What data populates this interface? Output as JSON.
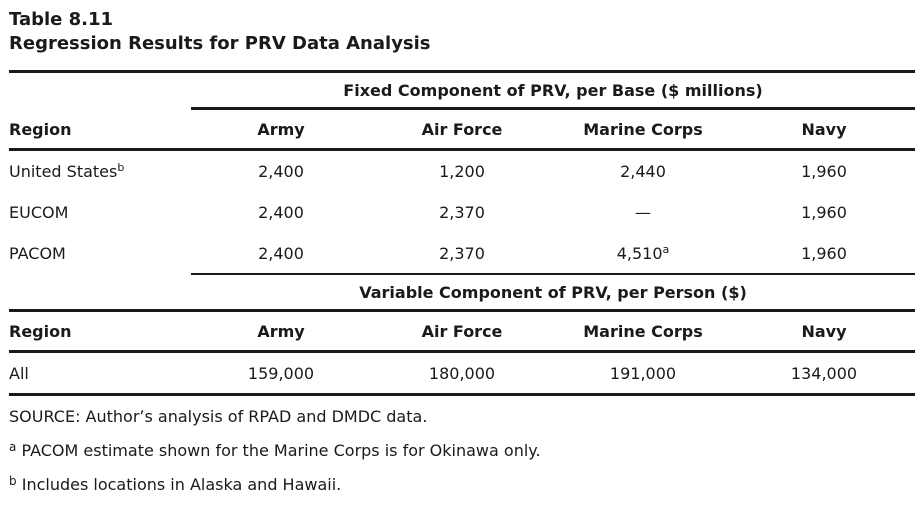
{
  "table": {
    "number": "Table 8.11",
    "title": "Regression Results for PRV Data Analysis",
    "fixed_heading": "Fixed Component of PRV, per Base ($ millions)",
    "variable_heading": "Variable Component of PRV, per Person ($)",
    "columns": [
      "Region",
      "Army",
      "Air Force",
      "Marine Corps",
      "Navy"
    ],
    "fixed_rows": [
      {
        "region": "United States",
        "region_sup": "b",
        "army": "2,400",
        "air_force": "1,200",
        "marine_corps": "2,440",
        "marine_sup": "",
        "navy": "1,960"
      },
      {
        "region": "EUCOM",
        "region_sup": "",
        "army": "2,400",
        "air_force": "2,370",
        "marine_corps": "—",
        "marine_sup": "",
        "navy": "1,960"
      },
      {
        "region": "PACOM",
        "region_sup": "",
        "army": "2,400",
        "air_force": "2,370",
        "marine_corps": "4,510",
        "marine_sup": "a",
        "navy": "1,960"
      }
    ],
    "variable_rows": [
      {
        "region": "All",
        "army": "159,000",
        "air_force": "180,000",
        "marine_corps": "191,000",
        "navy": "134,000"
      }
    ]
  },
  "notes": {
    "source": "SOURCE: Author’s analysis of RPAD and DMDC data.",
    "a_mark": "a",
    "a_text": "PACOM estimate shown for the Marine Corps is for Okinawa only.",
    "b_mark": "b",
    "b_text": "Includes locations in Alaska and Hawaii."
  }
}
